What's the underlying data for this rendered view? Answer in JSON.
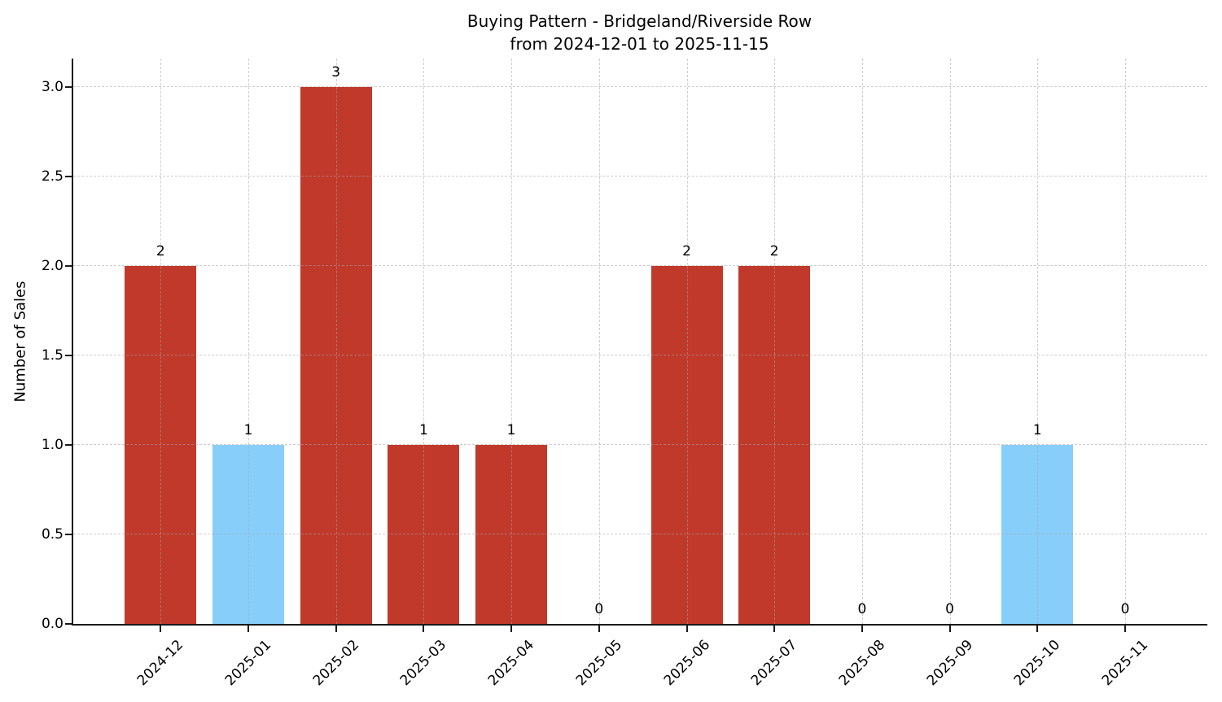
{
  "chart_data": {
    "type": "bar",
    "title": "Buying Pattern - Bridgeland/Riverside Row",
    "subtitle": "from 2024-12-01 to 2025-11-15",
    "ylabel": "Number of Sales",
    "xlabel": "",
    "categories": [
      "2024-12",
      "2025-01",
      "2025-02",
      "2025-03",
      "2025-04",
      "2025-05",
      "2025-06",
      "2025-07",
      "2025-08",
      "2025-09",
      "2025-10",
      "2025-11"
    ],
    "values": [
      2,
      1,
      3,
      1,
      1,
      0,
      2,
      2,
      0,
      0,
      1,
      0
    ],
    "bar_labels": [
      "2",
      "1",
      "3",
      "1",
      "1",
      "0",
      "2",
      "2",
      "0",
      "0",
      "1",
      "0"
    ],
    "bar_colors": [
      "#C0392B",
      "#87CEFA",
      "#C0392B",
      "#C0392B",
      "#C0392B",
      null,
      "#C0392B",
      "#C0392B",
      null,
      null,
      "#87CEFA",
      null
    ],
    "yticks": [
      "0.0",
      "0.5",
      "1.0",
      "1.5",
      "2.0",
      "2.5",
      "3.0"
    ],
    "ylim": [
      0,
      3.15
    ],
    "grid": true,
    "grid_style": "dashed",
    "legend": null,
    "colors": {
      "primary_bar": "#C0392B",
      "highlight_bar": "#87CEFA",
      "axis": "#1a1a1a",
      "background": "#ffffff"
    }
  }
}
